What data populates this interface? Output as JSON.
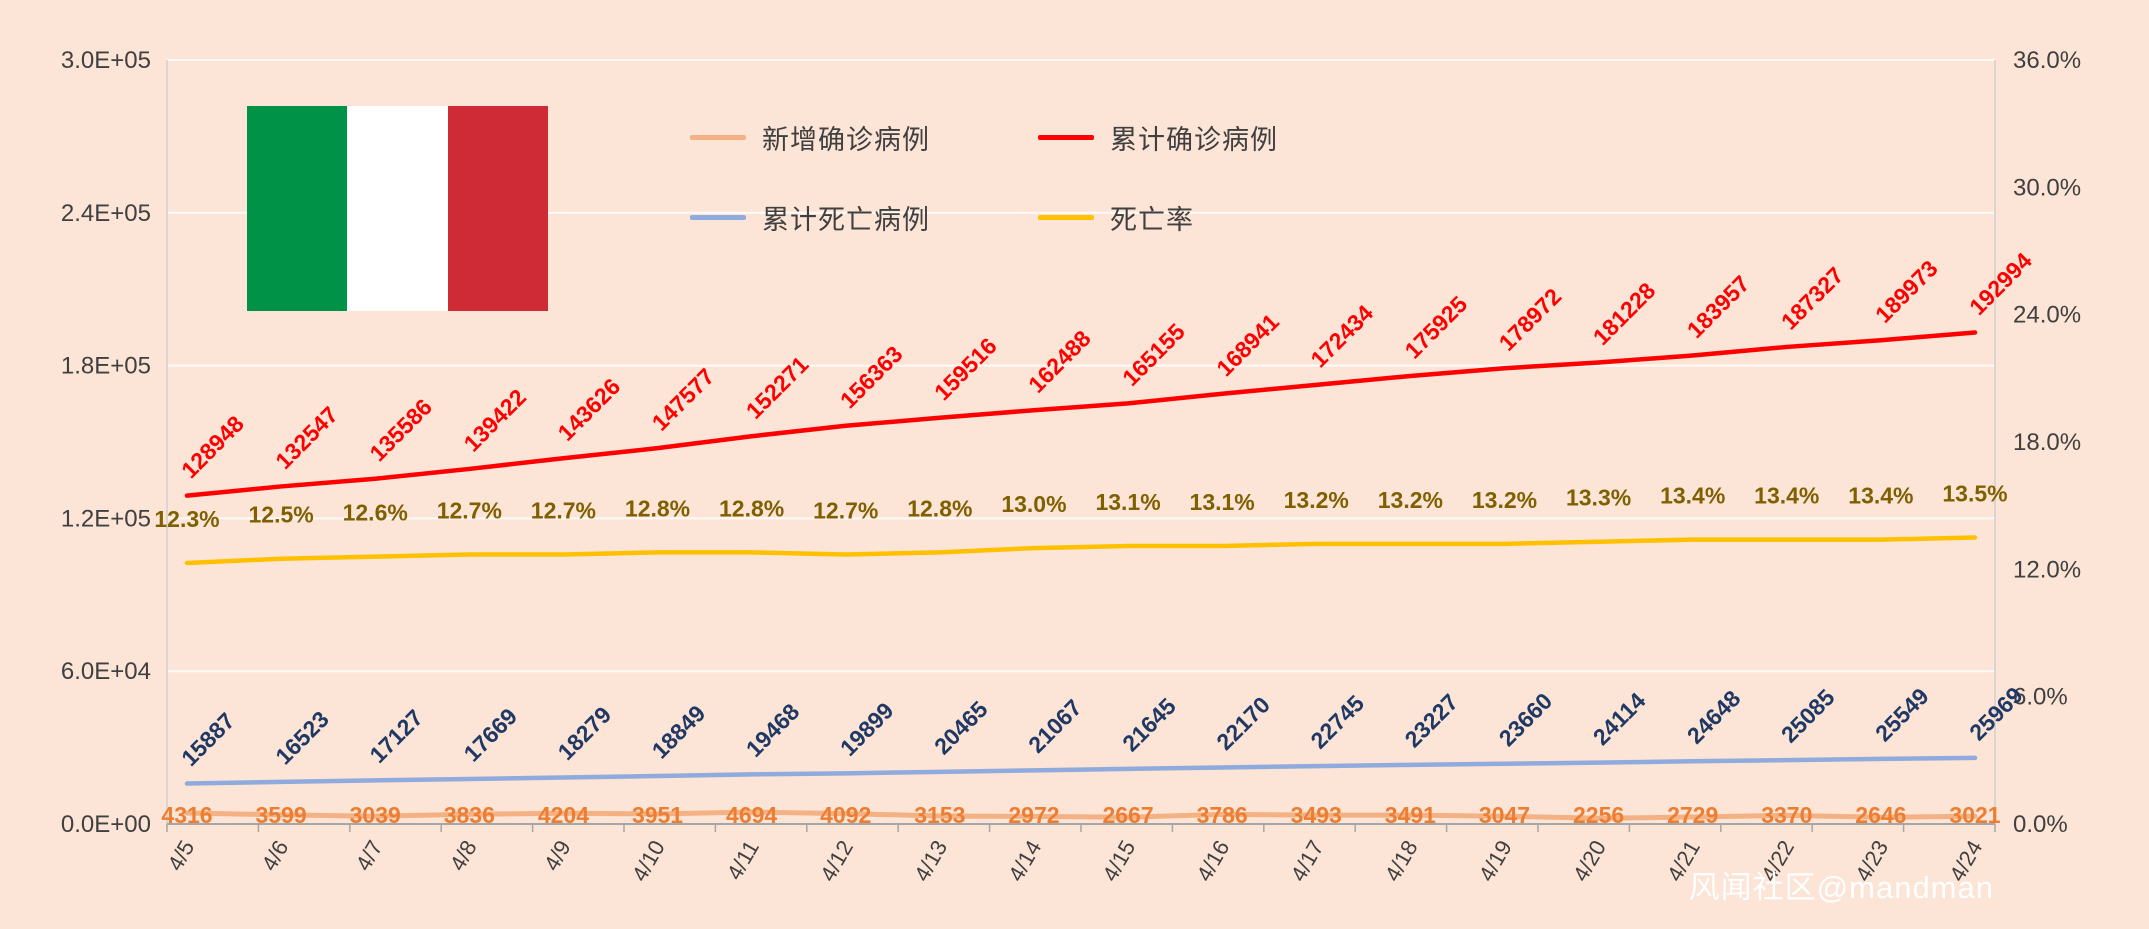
{
  "watermark": "风闻社区@mandman",
  "colors": {
    "background": "#fce4d6",
    "grid": "#ffffff",
    "axis_line": "#a6a6a6",
    "plot_border": "#d0d0d0",
    "tick_label": "#404040",
    "legend_text": "#404040",
    "watermark_text": "#ffffff"
  },
  "flag": {
    "name": "italy-flag",
    "stripes": [
      "#009246",
      "#ffffff",
      "#ce2b37"
    ]
  },
  "chart_data": {
    "type": "line",
    "title": "",
    "x": [
      "4/5",
      "4/6",
      "4/7",
      "4/8",
      "4/9",
      "4/10",
      "4/11",
      "4/12",
      "4/13",
      "4/14",
      "4/15",
      "4/16",
      "4/17",
      "4/18",
      "4/19",
      "4/20",
      "4/21",
      "4/22",
      "4/23",
      "4/24"
    ],
    "series": [
      {
        "name": "新增确诊病例",
        "axis": "left",
        "color": "#f4b183",
        "label_color": "#ed7d31",
        "label_style": "below-horizontal",
        "values": [
          4316,
          3599,
          3039,
          3836,
          4204,
          3951,
          4694,
          4092,
          3153,
          2972,
          2667,
          3786,
          3493,
          3491,
          3047,
          2256,
          2729,
          3370,
          2646,
          3021
        ]
      },
      {
        "name": "累计确诊病例",
        "axis": "left",
        "color": "#fe0000",
        "label_color": "#fe0000",
        "label_style": "diagonal",
        "values": [
          128948,
          132547,
          135586,
          139422,
          143626,
          147577,
          152271,
          156363,
          159516,
          162488,
          165155,
          168941,
          172434,
          175925,
          178972,
          181228,
          183957,
          187327,
          189973,
          192994
        ]
      },
      {
        "name": "累计死亡病例",
        "axis": "left",
        "color": "#8faadc",
        "label_color": "#1f3864",
        "label_style": "diagonal",
        "values": [
          15887,
          16523,
          17127,
          17669,
          18279,
          18849,
          19468,
          19899,
          20465,
          21067,
          21645,
          22170,
          22745,
          23227,
          23660,
          24114,
          24648,
          25085,
          25549,
          25969
        ]
      },
      {
        "name": "死亡率",
        "axis": "right",
        "color": "#ffc000",
        "label_color": "#7f6000",
        "label_style": "above-percent",
        "values": [
          12.3,
          12.5,
          12.6,
          12.7,
          12.7,
          12.8,
          12.8,
          12.7,
          12.8,
          13.0,
          13.1,
          13.1,
          13.2,
          13.2,
          13.2,
          13.3,
          13.4,
          13.4,
          13.4,
          13.5
        ]
      }
    ],
    "left_axis": {
      "min": 0,
      "max": 300000,
      "ticks": [
        {
          "v": 0,
          "label": "0.0E+00"
        },
        {
          "v": 60000,
          "label": "6.0E+04"
        },
        {
          "v": 120000,
          "label": "1.2E+05"
        },
        {
          "v": 180000,
          "label": "1.8E+05"
        },
        {
          "v": 240000,
          "label": "2.4E+05"
        },
        {
          "v": 300000,
          "label": "3.0E+05"
        }
      ]
    },
    "right_axis": {
      "min": 0,
      "max": 36,
      "ticks": [
        {
          "v": 0,
          "label": "0.0%"
        },
        {
          "v": 6,
          "label": "6.0%"
        },
        {
          "v": 12,
          "label": "12.0%"
        },
        {
          "v": 18,
          "label": "18.0%"
        },
        {
          "v": 24,
          "label": "24.0%"
        },
        {
          "v": 30,
          "label": "30.0%"
        },
        {
          "v": 36,
          "label": "36.0%"
        }
      ]
    },
    "legend_position": "top",
    "grid": "horizontal-only"
  }
}
